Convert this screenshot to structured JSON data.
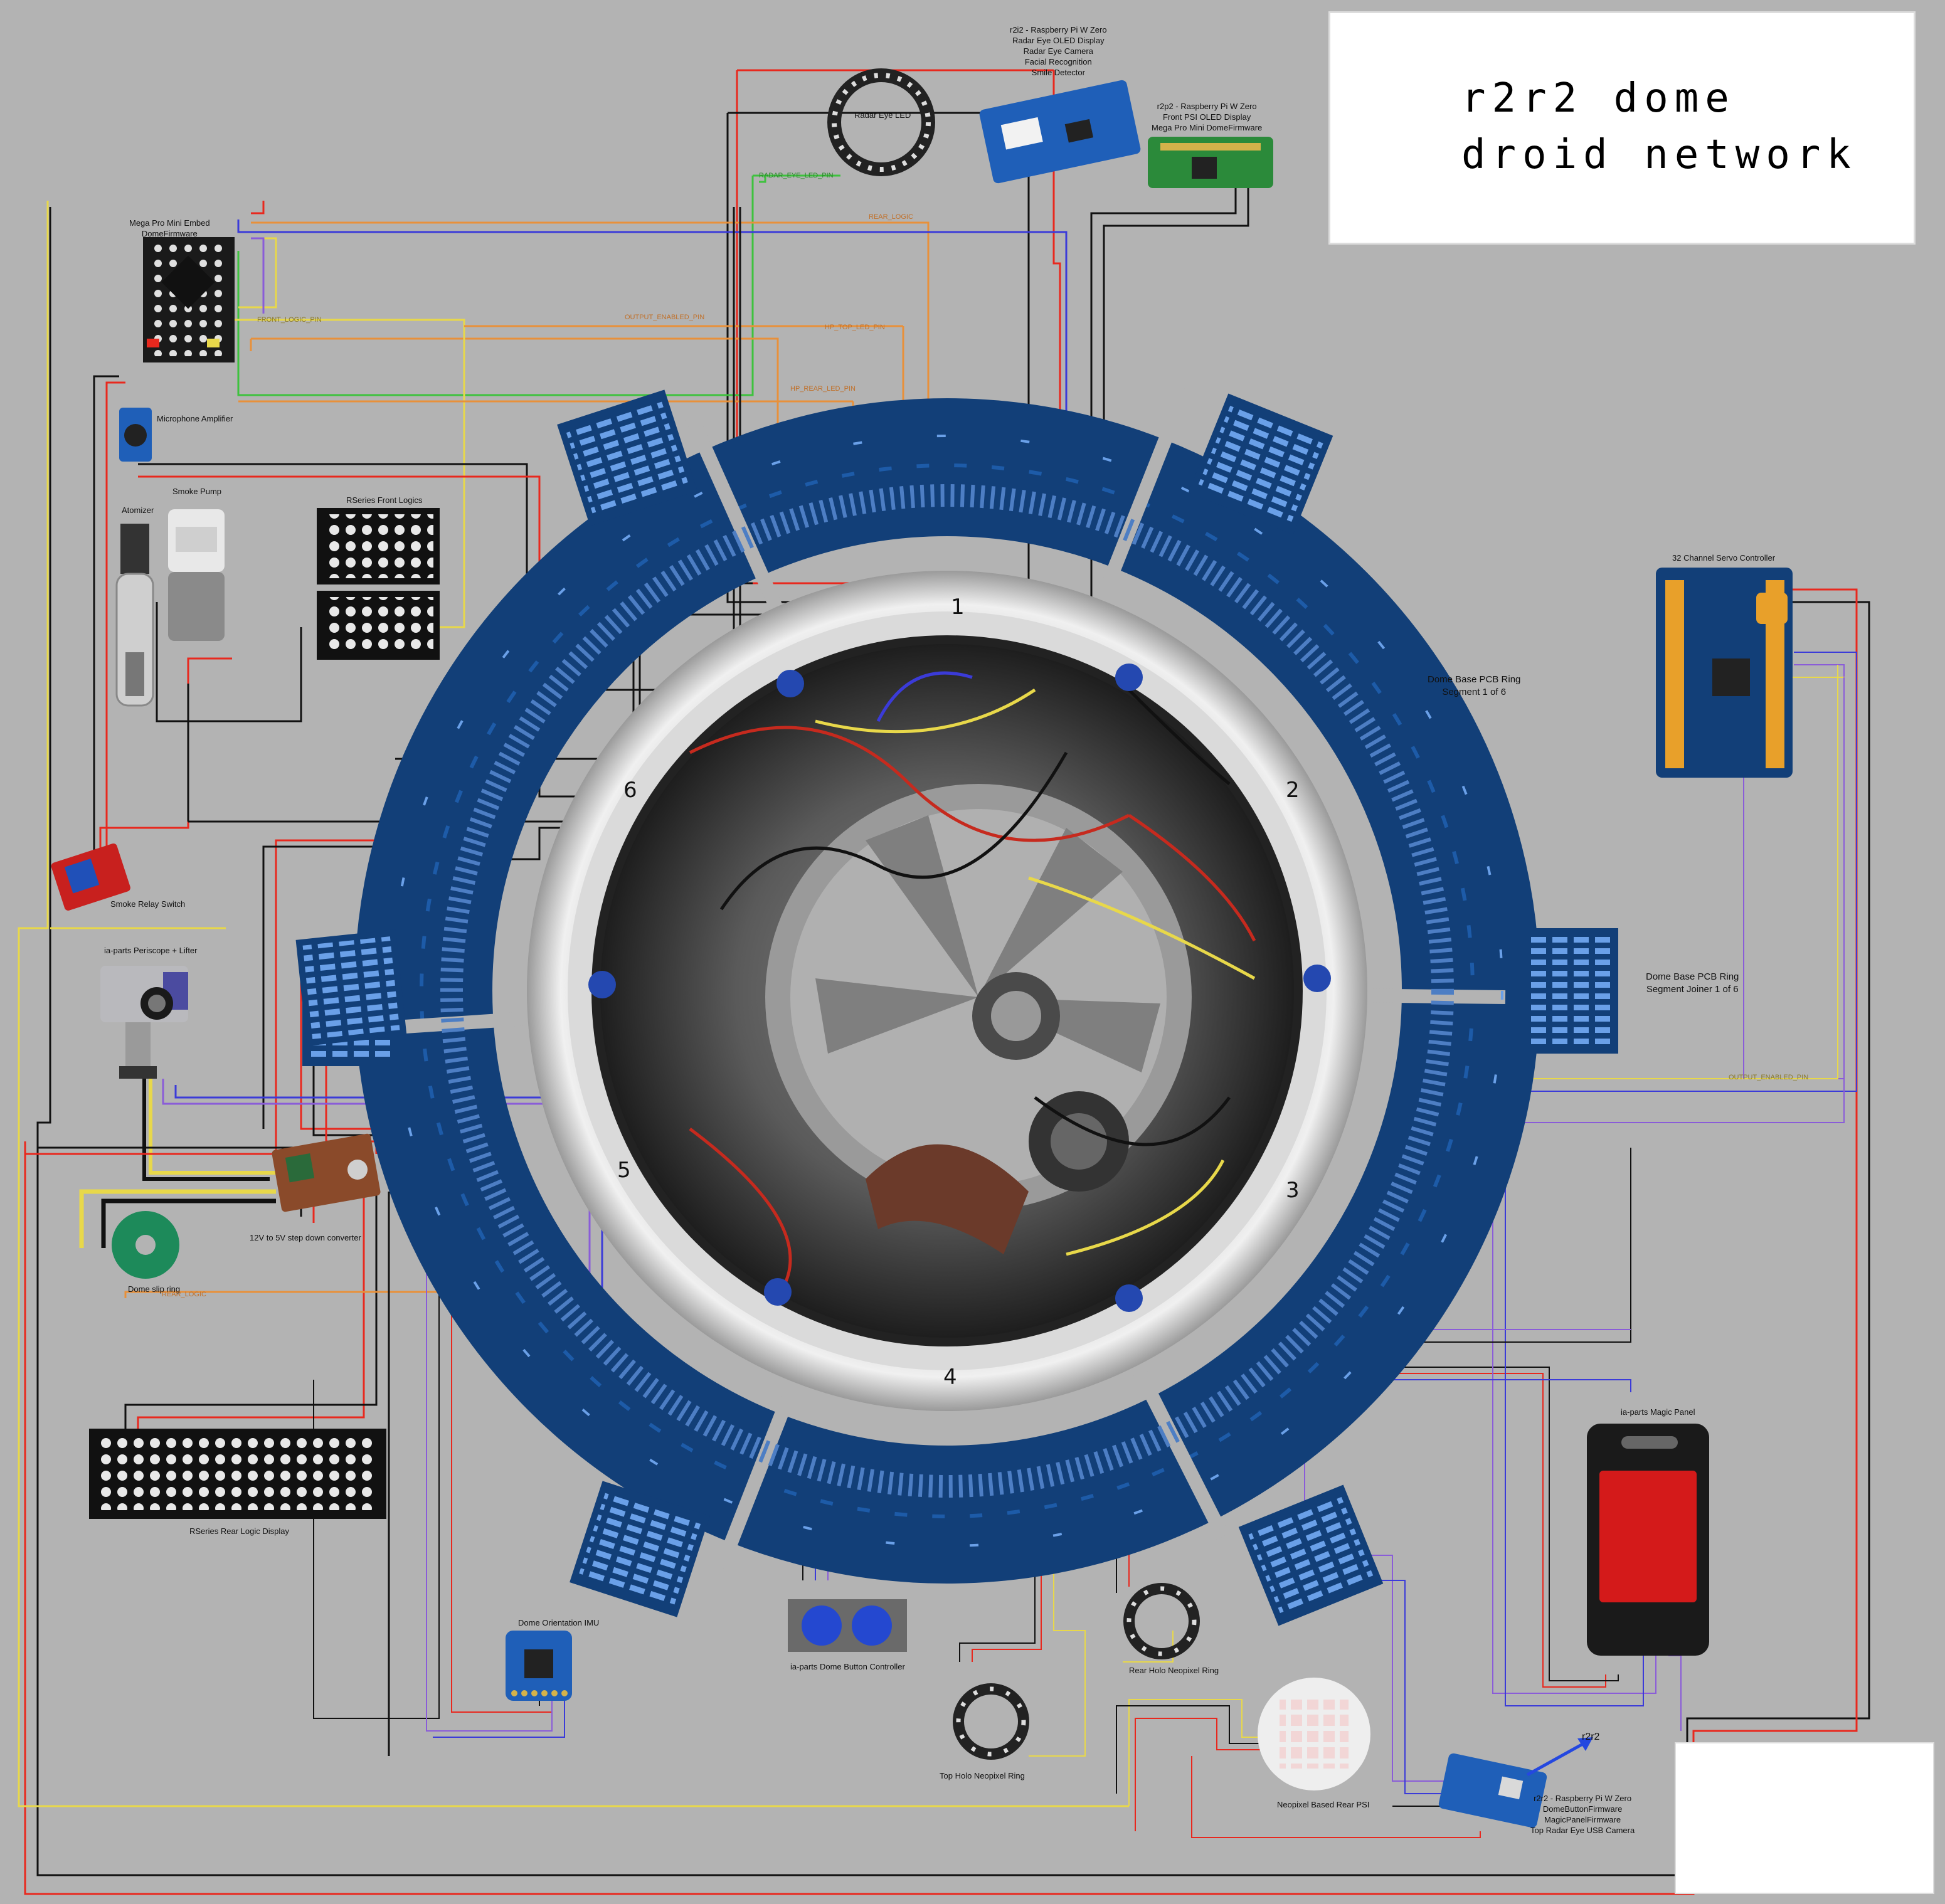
{
  "title_aurebesh": {
    "line1": "r2r2 dome",
    "line2": "droid network"
  },
  "segments": [
    "1",
    "2",
    "3",
    "4",
    "5",
    "6"
  ],
  "components": {
    "radar_eye_led": "Radar Eye LED",
    "r2i2": [
      "r2i2 - Raspberry Pi W Zero",
      "Radar Eye OLED Display",
      "Radar Eye Camera",
      "Facial Recognition",
      "Smile Detector"
    ],
    "r2p2": [
      "r2p2 - Raspberry Pi W Zero",
      "Front PSI OLED Display",
      "Mega Pro Mini DomeFirmware"
    ],
    "mega_pro": [
      "Mega Pro Mini Embed",
      "DomeFirmware"
    ],
    "mic_amp": "Microphone Amplifier",
    "atomizer": "Atomizer",
    "smoke_pump": "Smoke Pump",
    "front_logics": "RSeries Front Logics",
    "smoke_relay": "Smoke Relay Switch",
    "periscope": "ia-parts Periscope + Lifter",
    "step_down": "12V to 5V step down converter",
    "slip_ring": "Dome slip ring",
    "rear_logic": "RSeries Rear Logic Display",
    "imu": "Dome Orientation IMU",
    "button_ctrl": "ia-parts Dome Button Controller",
    "top_holo": "Top Holo Neopixel Ring",
    "rear_holo": "Rear Holo Neopixel Ring",
    "rear_psi": "Neopixel Based Rear PSI",
    "r2r2": [
      "r2r2 - Raspberry Pi W Zero",
      "DomeButtonFirmware",
      "MagicPanelFirmware",
      "Top Radar Eye USB Camera"
    ],
    "r2r2_arrow": "r2r2",
    "magic_panel": "ia-parts Magic Panel",
    "servo_ctrl": "32 Channel Servo Controller",
    "ring_segment": [
      "Dome Base PCB Ring",
      "Segment 1 of 6"
    ],
    "ring_joiner": [
      "Dome Base PCB Ring",
      "Segment Joiner 1 of 6"
    ]
  },
  "wires": {
    "radar_eye_led_pin": "RADAR_EYE_LED_PIN",
    "rear_logic_top": "REAR_LOGIC",
    "front_logic_pin": "FRONT_LOGIC_PIN",
    "output_enabled_pin": "OUTPUT_ENABLED_PIN",
    "hp_top_led_pin": "HP_TOP_LED_PIN",
    "hp_rear_led_pin": "HP_REAR_LED_PIN",
    "output_enabled_pin_right": "OUTPUT_ENABLED_PIN",
    "rear_logic_bottom": "REAR_LOGIC"
  },
  "colors": {
    "background": "#b3b3b3",
    "pcb_blue": "#123f78",
    "wire_red": "#e8281e",
    "wire_black": "#111111",
    "wire_yellow": "#e8d84a",
    "wire_blue": "#3b3bd8",
    "wire_purple": "#8a5cd8",
    "wire_orange": "#e8903a",
    "wire_green": "#3ec23e",
    "logo_blue": "#1c6f9e"
  }
}
